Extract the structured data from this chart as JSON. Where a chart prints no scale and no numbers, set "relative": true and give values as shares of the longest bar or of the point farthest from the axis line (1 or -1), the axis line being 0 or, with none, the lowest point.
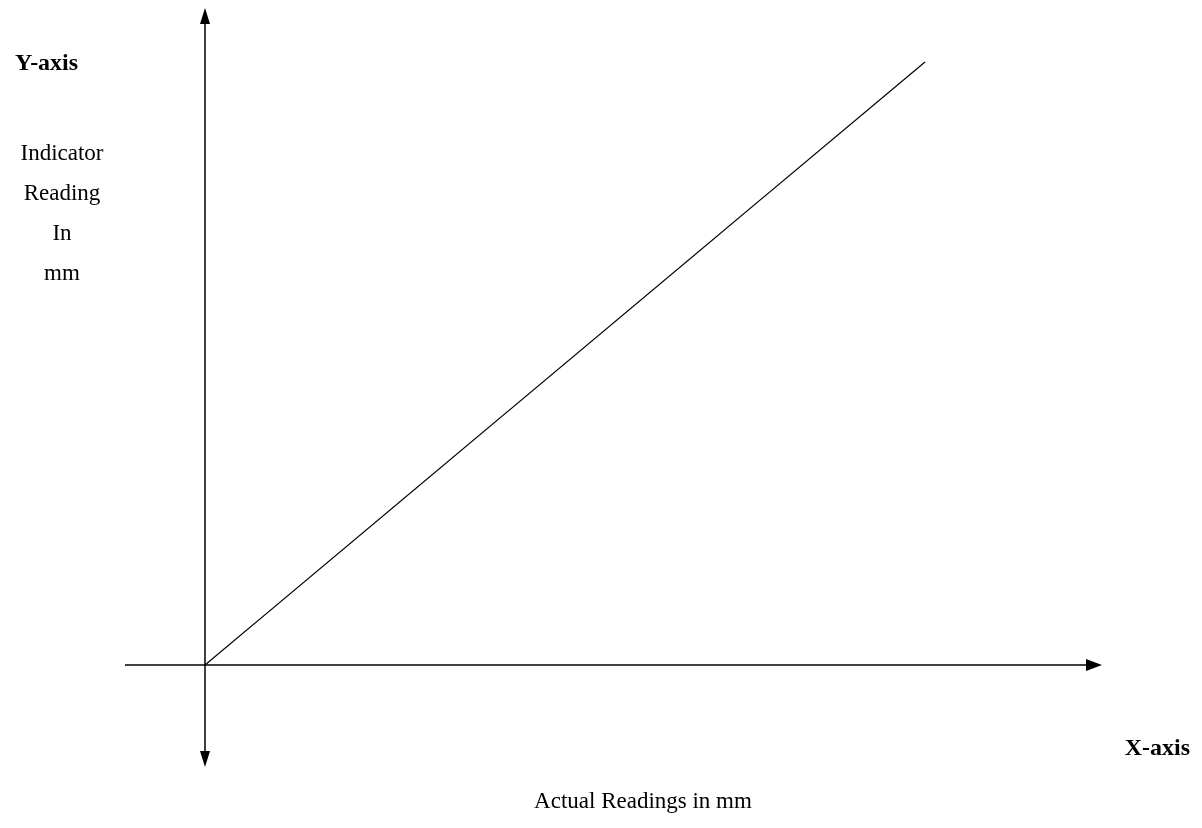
{
  "chart_data": {
    "type": "line",
    "relative": true,
    "ylabel": "Indicator Reading In mm",
    "annotations": [
      "Y-axis",
      "X-axis",
      "Actual Readings in mm"
    ],
    "categories": [
      null,
      null
    ],
    "series": [
      {
        "color": "#000000",
        "values": [
          0,
          1
        ]
      }
    ]
  }
}
